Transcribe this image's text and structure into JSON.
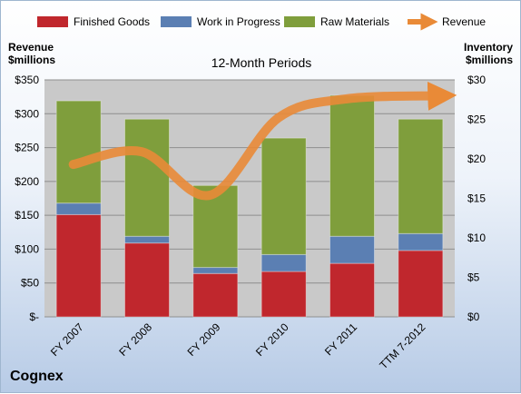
{
  "chart_data": {
    "type": "bar",
    "subtitle": "12-Month Periods",
    "ylabel_left": [
      "Revenue",
      "$millions"
    ],
    "ylabel_right": [
      "Inventory",
      "$millions"
    ],
    "categories": [
      "FY 2007",
      "FY 2008",
      "FY 2009",
      "FY 2010",
      "FY 2011",
      "TTM 7-2012"
    ],
    "left_axis": {
      "ylim": [
        0,
        350
      ],
      "ticks": [
        0,
        50,
        100,
        150,
        200,
        250,
        300,
        350
      ],
      "tick_labels": [
        "$-",
        "$50",
        "$100",
        "$150",
        "$200",
        "$250",
        "$300",
        "$350"
      ]
    },
    "right_axis": {
      "ylim": [
        0,
        30
      ],
      "ticks": [
        0,
        5,
        10,
        15,
        20,
        25,
        30
      ],
      "tick_labels": [
        "$0",
        "$5",
        "$10",
        "$15",
        "$20",
        "$25",
        "$30"
      ]
    },
    "series": [
      {
        "name": "Finished Goods",
        "color": "#c0272d",
        "values": [
          151,
          109,
          64,
          67,
          79,
          98
        ]
      },
      {
        "name": "Work in Progress",
        "color": "#5b7fb3",
        "values": [
          17,
          10,
          9,
          25,
          40,
          25
        ]
      },
      {
        "name": "Raw Materials",
        "color": "#7f9e3c",
        "values": [
          151,
          173,
          121,
          172,
          208,
          169
        ]
      },
      {
        "name": "Revenue",
        "color": "#e98a37",
        "type": "line",
        "values": [
          19.3,
          20.9,
          15.4,
          25.2,
          27.6,
          28.0
        ]
      }
    ],
    "legend_position": "top",
    "grid": true
  },
  "company": "Cognex"
}
